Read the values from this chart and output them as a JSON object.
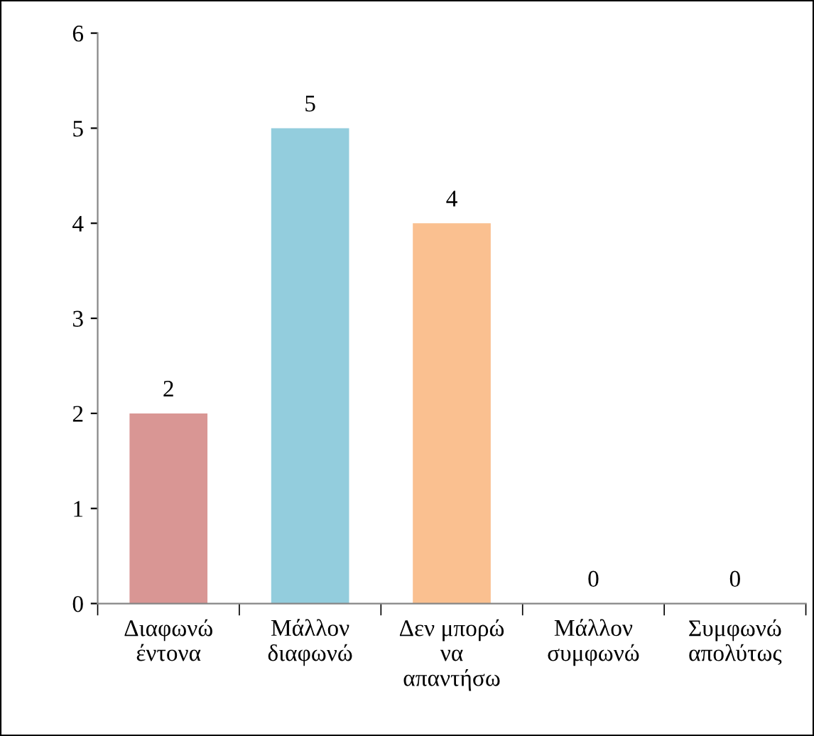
{
  "chart_data": {
    "type": "bar",
    "categories": [
      "Διαφωνώ\nέντονα",
      "Μάλλον\nδιαφωνώ",
      "Δεν μπορώ\nνα\nαπαντήσω",
      "Μάλλον\nσυμφωνώ",
      "Συμφωνώ\nαπολύτως"
    ],
    "values": [
      2,
      5,
      4,
      0,
      0
    ],
    "colors": [
      "#d99694",
      "#93cddd",
      "#fac090",
      "#b3a2c7",
      "#a6a6a6"
    ],
    "ylim": [
      0,
      6
    ],
    "yticks": [
      0,
      1,
      2,
      3,
      4,
      5,
      6
    ],
    "grid": false,
    "data_labels": true
  }
}
